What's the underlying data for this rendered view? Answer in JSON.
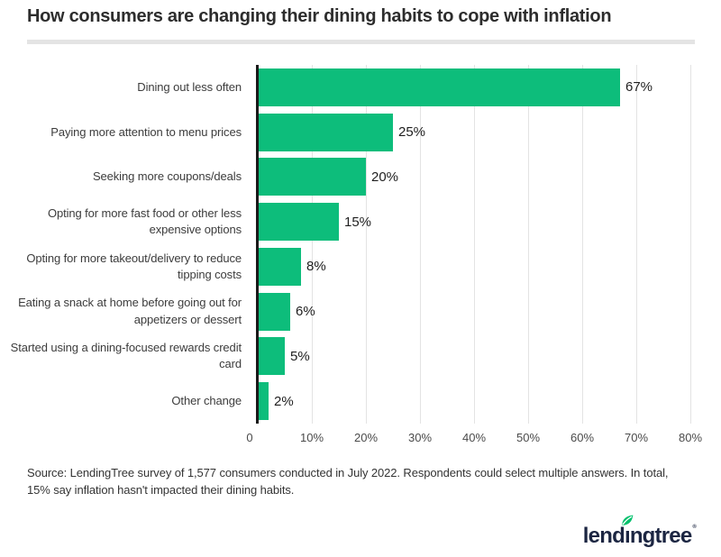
{
  "chart_data": {
    "type": "bar",
    "orientation": "horizontal",
    "title": "How consumers are changing their dining habits to cope with inflation",
    "categories": [
      "Dining out less often",
      "Paying more attention to menu prices",
      "Seeking more coupons/deals",
      "Opting for more fast food or other less expensive options",
      "Opting for more takeout/delivery to reduce tipping costs",
      "Eating a snack at home before going out for appetizers or dessert",
      "Started using a dining-focused rewards credit card",
      "Other change"
    ],
    "values": [
      67,
      25,
      20,
      15,
      8,
      6,
      5,
      2
    ],
    "value_labels": [
      "67%",
      "25%",
      "20%",
      "15%",
      "8%",
      "6%",
      "5%",
      "2%"
    ],
    "x_ticks": [
      "0",
      "10%",
      "20%",
      "30%",
      "40%",
      "50%",
      "60%",
      "70%",
      "80%"
    ],
    "x_tick_values": [
      0,
      10,
      20,
      30,
      40,
      50,
      60,
      70,
      80
    ],
    "xlim": [
      0,
      80
    ],
    "xlabel": "",
    "ylabel": "",
    "grid": true,
    "legend": false,
    "bar_color": "#0dbd7b",
    "axis_color": "#1a1a1a",
    "gridline_color": "#e3e3e3"
  },
  "source_note": "Source: LendingTree survey of 1,577 consumers conducted in July 2022. Respondents could select multiple answers. In total, 15% say inflation hasn't impacted their dining habits.",
  "logo": {
    "brand": "lendingtree",
    "text_parts": [
      "lend",
      "ı",
      "ngtree"
    ],
    "trademark": "®",
    "text_color": "#1c2642",
    "leaf_color": "#00c06c"
  }
}
